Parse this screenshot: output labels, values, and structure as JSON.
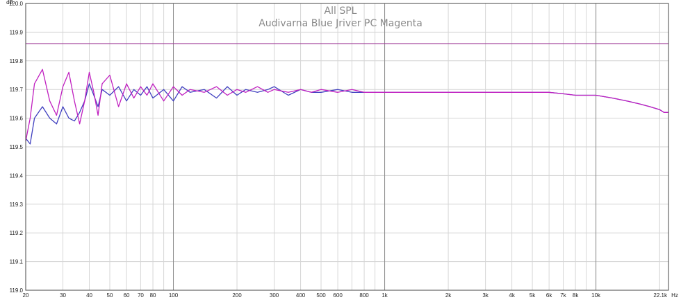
{
  "chart_data": {
    "type": "line",
    "title": "All SPL",
    "subtitle": "Audivarna Blue Jriver PC Magenta",
    "y_unit": "dB",
    "x_unit": "Hz",
    "x_scale": "log",
    "xlim": [
      20,
      22050
    ],
    "ylim": [
      119.0,
      120.0
    ],
    "grid": true,
    "y_ticks": [
      "120.0",
      "119.9",
      "119.8",
      "119.7",
      "119.6",
      "119.5",
      "119.4",
      "119.3",
      "119.2",
      "119.1",
      "119.0"
    ],
    "x_ticks": [
      {
        "value": 20,
        "label": "20"
      },
      {
        "value": 30,
        "label": "30"
      },
      {
        "value": 40,
        "label": "40"
      },
      {
        "value": 50,
        "label": "50"
      },
      {
        "value": 60,
        "label": "60"
      },
      {
        "value": 70,
        "label": "70"
      },
      {
        "value": 80,
        "label": "80"
      },
      {
        "value": 100,
        "label": "100"
      },
      {
        "value": 200,
        "label": "200"
      },
      {
        "value": 300,
        "label": "300"
      },
      {
        "value": 400,
        "label": "400"
      },
      {
        "value": 500,
        "label": "500"
      },
      {
        "value": 600,
        "label": "600"
      },
      {
        "value": 800,
        "label": "800"
      },
      {
        "value": 1000,
        "label": "1k"
      },
      {
        "value": 2000,
        "label": "2k"
      },
      {
        "value": 3000,
        "label": "3k"
      },
      {
        "value": 4000,
        "label": "4k"
      },
      {
        "value": 5000,
        "label": "5k"
      },
      {
        "value": 6000,
        "label": "6k"
      },
      {
        "value": 7000,
        "label": "7k"
      },
      {
        "value": 8000,
        "label": "8k"
      },
      {
        "value": 10000,
        "label": "10k"
      },
      {
        "value": 22100,
        "label": "22.1k"
      }
    ],
    "reference_line": {
      "y": 119.86,
      "color": "#a0409a"
    },
    "series": [
      {
        "color": "#3f3fbf",
        "x": [
          20,
          21,
          22,
          24,
          26,
          28,
          30,
          32,
          34,
          36,
          38,
          40,
          42,
          44,
          46,
          50,
          55,
          60,
          65,
          70,
          75,
          80,
          90,
          100,
          110,
          120,
          140,
          160,
          180,
          200,
          220,
          250,
          280,
          300,
          350,
          400,
          450,
          500,
          600,
          700,
          800,
          1000,
          1500,
          2000,
          3000,
          4000,
          5000,
          6000,
          7000,
          8000,
          10000,
          12000,
          14000,
          16000,
          18000,
          20000,
          21000,
          22050
        ],
        "y": [
          119.53,
          119.51,
          119.6,
          119.64,
          119.6,
          119.58,
          119.64,
          119.6,
          119.59,
          119.62,
          119.66,
          119.72,
          119.68,
          119.64,
          119.7,
          119.68,
          119.71,
          119.66,
          119.7,
          119.68,
          119.71,
          119.67,
          119.7,
          119.66,
          119.71,
          119.69,
          119.7,
          119.67,
          119.71,
          119.68,
          119.7,
          119.69,
          119.7,
          119.71,
          119.68,
          119.7,
          119.69,
          119.69,
          119.7,
          119.69,
          119.69,
          119.69,
          119.69,
          119.69,
          119.69,
          119.69,
          119.69,
          119.69,
          119.685,
          119.68,
          119.68,
          119.67,
          119.66,
          119.65,
          119.64,
          119.63,
          119.62,
          119.62
        ]
      },
      {
        "color": "#c020c0",
        "x": [
          20,
          21,
          22,
          24,
          26,
          28,
          30,
          32,
          34,
          36,
          38,
          40,
          42,
          44,
          46,
          50,
          55,
          60,
          65,
          70,
          75,
          80,
          90,
          100,
          110,
          120,
          140,
          160,
          180,
          200,
          220,
          250,
          280,
          300,
          350,
          400,
          450,
          500,
          600,
          700,
          800,
          1000,
          1500,
          2000,
          3000,
          4000,
          5000,
          6000,
          7000,
          8000,
          10000,
          12000,
          14000,
          16000,
          18000,
          20000,
          21000,
          22050
        ],
        "y": [
          119.52,
          119.6,
          119.72,
          119.77,
          119.66,
          119.61,
          119.71,
          119.76,
          119.66,
          119.58,
          119.66,
          119.76,
          119.69,
          119.61,
          119.72,
          119.75,
          119.64,
          119.72,
          119.67,
          119.71,
          119.68,
          119.72,
          119.66,
          119.71,
          119.68,
          119.7,
          119.69,
          119.71,
          119.68,
          119.7,
          119.69,
          119.71,
          119.69,
          119.7,
          119.69,
          119.7,
          119.69,
          119.7,
          119.69,
          119.7,
          119.69,
          119.69,
          119.69,
          119.69,
          119.69,
          119.69,
          119.69,
          119.69,
          119.685,
          119.68,
          119.68,
          119.67,
          119.66,
          119.65,
          119.64,
          119.63,
          119.62,
          119.62
        ]
      }
    ]
  }
}
